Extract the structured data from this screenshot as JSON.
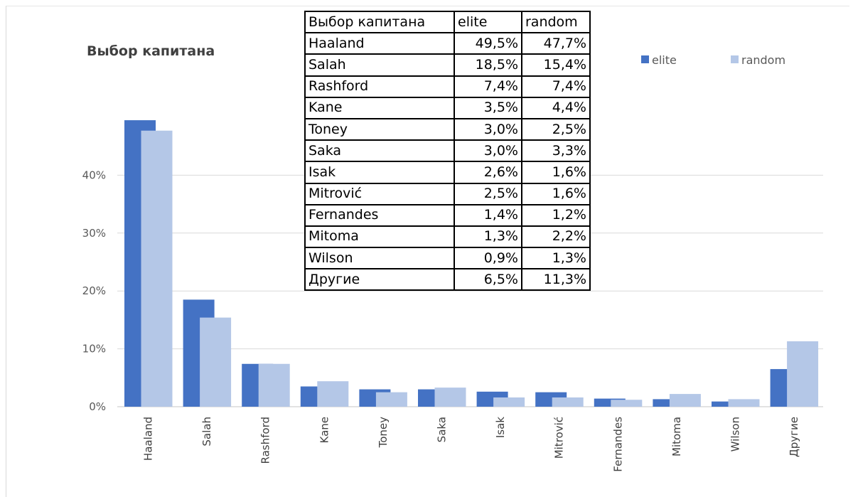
{
  "chart_data": {
    "type": "bar",
    "title": "Выбор капитана",
    "categories": [
      "Haaland",
      "Salah",
      "Rashford",
      "Kane",
      "Toney",
      "Saka",
      "Isak",
      "Mitrović",
      "Fernandes",
      "Mitoma",
      "Wilson",
      "Другие"
    ],
    "series": [
      {
        "name": "elite",
        "values": [
          49.5,
          18.5,
          7.4,
          3.5,
          3.0,
          3.0,
          2.6,
          2.5,
          1.4,
          1.3,
          0.9,
          6.5
        ]
      },
      {
        "name": "random",
        "values": [
          47.7,
          15.4,
          7.4,
          4.4,
          2.5,
          3.3,
          1.6,
          1.6,
          1.2,
          2.2,
          1.3,
          11.3
        ]
      }
    ],
    "yticks": [
      "0%",
      "10%",
      "20%",
      "30%",
      "40%"
    ],
    "ylim": [
      0,
      50
    ],
    "grid": true,
    "legend_position": "top-right",
    "colors": {
      "elite": "#4472c4",
      "random": "#b4c7e7",
      "grid": "#d9d9d9"
    }
  },
  "table": {
    "header": [
      "Выбор капитана",
      "elite",
      "random"
    ],
    "rows": [
      [
        "Haaland",
        "49,5%",
        "47,7%"
      ],
      [
        "Salah",
        "18,5%",
        "15,4%"
      ],
      [
        "Rashford",
        "7,4%",
        "7,4%"
      ],
      [
        "Kane",
        "3,5%",
        "4,4%"
      ],
      [
        "Toney",
        "3,0%",
        "2,5%"
      ],
      [
        "Saka",
        "3,0%",
        "3,3%"
      ],
      [
        "Isak",
        "2,6%",
        "1,6%"
      ],
      [
        "Mitrović",
        "2,5%",
        "1,6%"
      ],
      [
        "Fernandes",
        "1,4%",
        "1,2%"
      ],
      [
        "Mitoma",
        "1,3%",
        "2,2%"
      ],
      [
        "Wilson",
        "0,9%",
        "1,3%"
      ],
      [
        "Другие",
        "6,5%",
        "11,3%"
      ]
    ]
  }
}
